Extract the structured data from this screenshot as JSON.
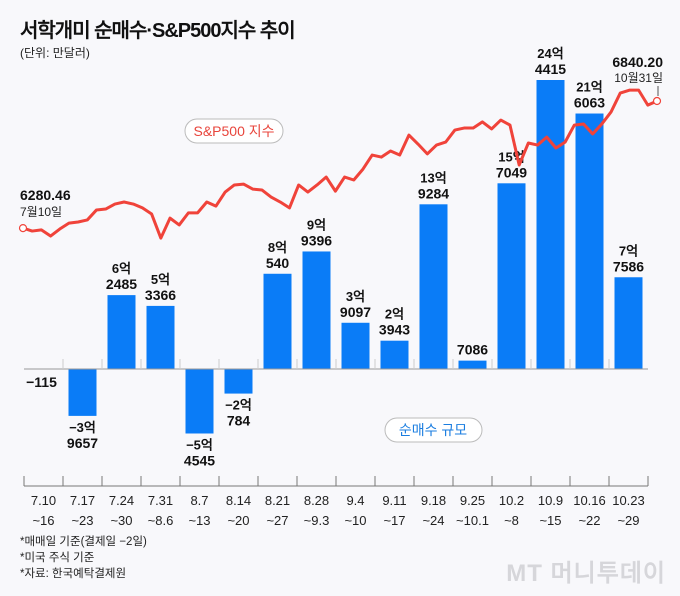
{
  "title": "서학개미 순매수·S&P500지수 추이",
  "unit": "(단위: 만달러)",
  "footnotes": [
    "*매매일 기준(결제일 −2일)",
    "*미국 주식 기준",
    "*자료: 한국예탁결제원"
  ],
  "logo": "MT 머니투데이",
  "colors": {
    "bar": "#0a7cf7",
    "line": "#f0433a",
    "background": "#f8f8fb"
  },
  "chart_data": {
    "type": "bar+line",
    "title": "서학개미 순매수·S&P500지수 추이",
    "bar_series": {
      "name": "순매수 규모",
      "categories": [
        [
          "7.10",
          "~16"
        ],
        [
          "7.17",
          "~23"
        ],
        [
          "7.24",
          "~30"
        ],
        [
          "7.31",
          "~8.6"
        ],
        [
          "8.7",
          "~13"
        ],
        [
          "8.14",
          "~20"
        ],
        [
          "8.21",
          "~27"
        ],
        [
          "8.28",
          "~9.3"
        ],
        [
          "9.4",
          "~10"
        ],
        [
          "9.11",
          "~17"
        ],
        [
          "9.18",
          "~24"
        ],
        [
          "9.25",
          "~10.1"
        ],
        [
          "10.2",
          "~8"
        ],
        [
          "10.9",
          "~15"
        ],
        [
          "10.16",
          "~22"
        ],
        [
          "10.23",
          "~29"
        ]
      ],
      "values": [
        -115,
        -39657,
        62485,
        53366,
        -54545,
        -20784,
        80540,
        99396,
        39097,
        23943,
        139284,
        7086,
        157049,
        244415,
        216063,
        77586
      ],
      "labels": [
        [
          "",
          "−115"
        ],
        [
          "−3억",
          "9657"
        ],
        [
          "6억",
          "2485"
        ],
        [
          "5억",
          "3366"
        ],
        [
          "−5억",
          "4545"
        ],
        [
          "−2억",
          "784"
        ],
        [
          "8억",
          "540"
        ],
        [
          "9억",
          "9396"
        ],
        [
          "3억",
          "9097"
        ],
        [
          "2억",
          "3943"
        ],
        [
          "13억",
          "9284"
        ],
        [
          "",
          "7086"
        ],
        [
          "15억",
          "7049"
        ],
        [
          "24억",
          "4415"
        ],
        [
          "21억",
          "6063"
        ],
        [
          "7억",
          "7586"
        ]
      ]
    },
    "line_series": {
      "name": "S&P500 지수",
      "start": {
        "value": "6280.46",
        "date": "7월10일"
      },
      "end": {
        "value": "6840.20",
        "date": "10월31일"
      },
      "values": [
        6280,
        6267,
        6272,
        6245,
        6276,
        6302,
        6307,
        6316,
        6360,
        6364,
        6386,
        6395,
        6386,
        6369,
        6342,
        6236,
        6324,
        6294,
        6347,
        6347,
        6395,
        6377,
        6439,
        6470,
        6474,
        6452,
        6448,
        6417,
        6395,
        6369,
        6470,
        6439,
        6470,
        6505,
        6443,
        6505,
        6492,
        6540,
        6602,
        6593,
        6620,
        6602,
        6690,
        6650,
        6607,
        6646,
        6659,
        6712,
        6721,
        6721,
        6748,
        6717,
        6756,
        6734,
        6558,
        6655,
        6646,
        6681,
        6633,
        6659,
        6734,
        6739,
        6695,
        6739,
        6792,
        6875,
        6888,
        6888,
        6822,
        6840.2
      ]
    }
  }
}
